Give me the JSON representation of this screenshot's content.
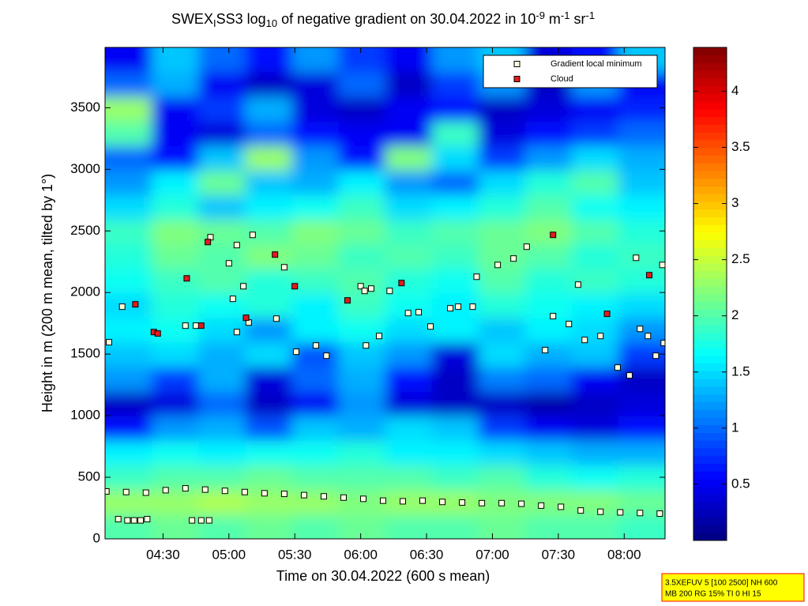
{
  "chart_data": {
    "type": "heatmap",
    "title_parts": [
      {
        "text": "SWEX"
      },
      {
        "text": "I",
        "script": "sub"
      },
      {
        "text": "SS3 log"
      },
      {
        "text": "10",
        "script": "sub"
      },
      {
        "text": " of negative gradient on 30.04.2022 in 10"
      },
      {
        "text": "-9",
        "script": "sup"
      },
      {
        "text": " m"
      },
      {
        "text": "-1",
        "script": "sup"
      },
      {
        "text": " sr"
      },
      {
        "text": "-1",
        "script": "sup"
      }
    ],
    "xlabel": "Time on 30.04.2022 (600 s mean)",
    "ylabel": "Height in m (200 m mean, tilted by 1°)",
    "xlim": [
      4.06,
      8.31
    ],
    "xticks": [
      {
        "value": 4.5,
        "label": "04:30"
      },
      {
        "value": 5,
        "label": "05:00"
      },
      {
        "value": 5.5,
        "label": "05:30"
      },
      {
        "value": 6,
        "label": "06:00"
      },
      {
        "value": 6.5,
        "label": "06:30"
      },
      {
        "value": 7,
        "label": "07:00"
      },
      {
        "value": 7.5,
        "label": "07:30"
      },
      {
        "value": 8,
        "label": "08:00"
      }
    ],
    "ylim": [
      0,
      3990
    ],
    "yticks": [
      0,
      500,
      1000,
      1500,
      2000,
      2500,
      3000,
      3500
    ],
    "heatmap": {
      "colormap": "jet",
      "clim": [
        0,
        4.39
      ],
      "cticks": [
        0.5,
        1,
        1.5,
        2,
        2.5,
        3,
        3.5,
        4
      ],
      "z": [
        [
          2.0,
          2.1,
          2.0,
          2.1,
          2.0,
          2.1,
          2.0,
          2.0,
          2.1,
          2.0,
          2.0,
          1.9
        ],
        [
          2.3,
          2.3,
          2.4,
          2.3,
          2.3,
          2.2,
          2.3,
          2.3,
          2.2,
          2.2,
          2.2,
          2.1
        ],
        [
          1.9,
          2.0,
          2.0,
          2.1,
          2.0,
          2.0,
          2.0,
          1.9,
          2.0,
          1.8,
          1.7,
          1.8
        ],
        [
          1.6,
          1.7,
          1.6,
          1.7,
          1.7,
          1.8,
          1.6,
          1.6,
          1.5,
          1.4,
          1.3,
          1.3
        ],
        [
          0.6,
          1.2,
          1.3,
          0.9,
          1.4,
          1.3,
          1.5,
          1.4,
          0.8,
          0.5,
          0.4,
          0.6
        ],
        [
          0.3,
          0.4,
          1.0,
          0.3,
          0.5,
          1.2,
          0.4,
          0.3,
          0.3,
          0.2,
          0.3,
          0.4
        ],
        [
          1.2,
          0.8,
          1.3,
          0.4,
          1.0,
          1.3,
          0.6,
          0.3,
          1.1,
          1.0,
          0.5,
          0.3
        ],
        [
          1.4,
          1.5,
          1.3,
          1.5,
          0.9,
          1.4,
          1.2,
          0.4,
          1.5,
          1.3,
          1.4,
          0.8
        ],
        [
          1.6,
          1.7,
          1.5,
          1.2,
          1.6,
          1.7,
          1.5,
          1.6,
          1.4,
          1.6,
          1.5,
          1.2
        ],
        [
          1.5,
          1.8,
          1.7,
          1.8,
          1.6,
          1.9,
          1.7,
          1.6,
          1.8,
          1.7,
          1.6,
          1.5
        ],
        [
          1.7,
          1.9,
          2.0,
          1.8,
          1.9,
          2.0,
          1.8,
          1.7,
          2.0,
          1.8,
          1.9,
          1.8
        ],
        [
          1.8,
          2.1,
          2.0,
          2.2,
          2.1,
          1.9,
          2.0,
          1.9,
          2.1,
          2.0,
          1.8,
          1.9
        ],
        [
          1.9,
          2.2,
          2.1,
          2.0,
          2.2,
          2.1,
          1.9,
          2.0,
          2.1,
          2.2,
          2.0,
          1.8
        ],
        [
          1.5,
          1.8,
          1.4,
          1.6,
          1.7,
          1.9,
          1.5,
          1.6,
          1.8,
          2.0,
          1.7,
          1.6
        ],
        [
          1.2,
          1.6,
          2.1,
          1.4,
          1.3,
          1.6,
          1.2,
          1.0,
          1.5,
          1.8,
          2.0,
          1.4
        ],
        [
          1.0,
          0.6,
          1.4,
          2.3,
          1.2,
          0.6,
          2.2,
          1.5,
          0.8,
          1.2,
          1.5,
          1.3
        ],
        [
          2.0,
          0.5,
          0.4,
          1.0,
          0.6,
          0.5,
          0.5,
          1.9,
          0.4,
          0.6,
          0.8,
          1.0
        ],
        [
          2.3,
          0.5,
          0.8,
          1.3,
          0.4,
          0.3,
          0.5,
          0.6,
          0.3,
          0.4,
          0.5,
          0.7
        ],
        [
          1.0,
          1.3,
          0.5,
          0.3,
          0.4,
          1.0,
          0.3,
          0.8,
          1.2,
          0.3,
          1.2,
          0.5
        ],
        [
          0.5,
          1.4,
          1.0,
          0.6,
          1.2,
          0.8,
          0.5,
          1.2,
          1.4,
          0.4,
          0.6,
          1.4
        ]
      ]
    },
    "series": [
      {
        "name": "Gradient local minimum",
        "color": "#ffffe0",
        "x": [
          4.07,
          4.22,
          4.37,
          4.52,
          4.67,
          4.82,
          4.97,
          5.12,
          5.27,
          5.42,
          5.57,
          5.72,
          5.87,
          6.02,
          6.17,
          6.32,
          6.47,
          6.62,
          6.77,
          6.92,
          7.07,
          7.22,
          7.37,
          7.52,
          7.67,
          7.82,
          7.97,
          8.12,
          8.27,
          4.16,
          4.23,
          4.28,
          4.33,
          4.38,
          4.72,
          4.79,
          4.85,
          4.09,
          4.19,
          4.86,
          5.0,
          5.06,
          5.18,
          5.11,
          5.03,
          5.06,
          5.15,
          5.36,
          5.42,
          5.51,
          5.66,
          5.74,
          6.04,
          6.14,
          6.22,
          6.36,
          6.53,
          6.68,
          6.85,
          7.04,
          7.16,
          6.88,
          7.4,
          7.46,
          7.58,
          7.82,
          7.95,
          8.04,
          8.09,
          8.12,
          8.18,
          8.24,
          8.3,
          8.29,
          7.65,
          7.26,
          6.44,
          6.74,
          6.0,
          6.03,
          6.08,
          7.7,
          4.67,
          4.75
        ],
        "y": [
          385,
          380,
          375,
          395,
          410,
          400,
          390,
          380,
          370,
          365,
          355,
          345,
          335,
          325,
          310,
          305,
          310,
          300,
          295,
          290,
          290,
          285,
          270,
          260,
          230,
          220,
          215,
          210,
          205,
          160,
          150,
          150,
          150,
          160,
          150,
          150,
          150,
          1596,
          1885,
          2449,
          2237,
          2385,
          2468,
          2051,
          1949,
          1679,
          1756,
          1788,
          2205,
          1519,
          1570,
          1487,
          1570,
          1647,
          2013,
          1833,
          1724,
          1872,
          1885,
          2224,
          2276,
          2128,
          1532,
          1808,
          1744,
          1647,
          1391,
          1327,
          2282,
          1705,
          1647,
          1487,
          1590,
          2224,
          2064,
          2372,
          1840,
          1885,
          2051,
          2013,
          2032,
          1615,
          1731,
          1731
        ]
      },
      {
        "name": "Cloud",
        "color": "#e41a1c",
        "x": [
          4.29,
          4.43,
          4.68,
          5.13,
          5.5,
          5.9,
          6.31,
          7.46,
          7.87,
          8.19,
          5.35,
          4.84,
          4.46,
          4.79
        ],
        "y": [
          1904,
          1679,
          2115,
          1795,
          2051,
          1936,
          2077,
          2468,
          1827,
          2141,
          2308,
          2410,
          1667,
          1731
        ]
      }
    ],
    "legend": "upper right",
    "footnote": [
      "3.5XEFUV 5 [100 2500] NH 600",
      "MB 200 RG 15% TI 0 HI 15"
    ]
  }
}
